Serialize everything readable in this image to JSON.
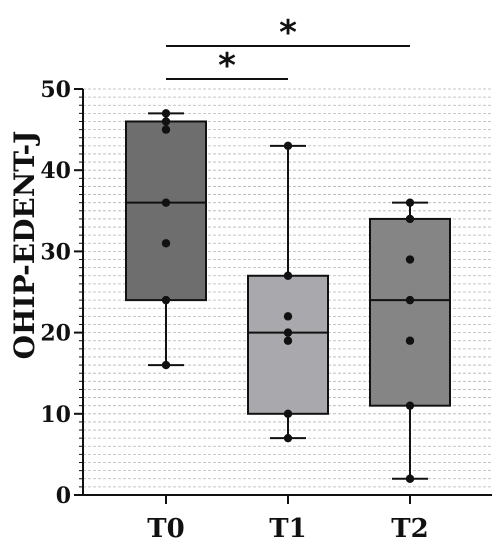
{
  "chart_data": {
    "type": "box",
    "ylabel": "OHIP-EDENT-J",
    "ylim": [
      0,
      50
    ],
    "y_ticks": [
      0,
      10,
      20,
      30,
      40,
      50
    ],
    "grid": "dashed horizontal minor",
    "categories": [
      "T0",
      "T1",
      "T2"
    ],
    "boxes": [
      {
        "category": "T0",
        "min": 16,
        "q1": 24,
        "median": 36,
        "q3": 46,
        "max": 47,
        "color": "#6e6e6e",
        "points": [
          47,
          46,
          45,
          36,
          31,
          24,
          16
        ]
      },
      {
        "category": "T1",
        "min": 7,
        "q1": 10,
        "median": 20,
        "q3": 27,
        "max": 43,
        "color": "#a8a8ad",
        "points": [
          43,
          27,
          22,
          20,
          19,
          10,
          7
        ]
      },
      {
        "category": "T2",
        "min": 2,
        "q1": 11,
        "median": 24,
        "q3": 34,
        "max": 36,
        "color": "#858585",
        "points": [
          36,
          34,
          29,
          24,
          19,
          11,
          2
        ]
      }
    ],
    "significance": [
      {
        "from": "T0",
        "to": "T1",
        "label": "*"
      },
      {
        "from": "T0",
        "to": "T2",
        "label": "*"
      }
    ]
  }
}
